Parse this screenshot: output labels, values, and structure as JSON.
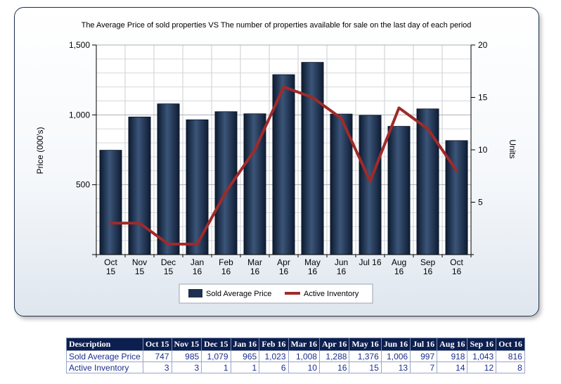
{
  "chart_data": {
    "type": "bar",
    "title": "The Average Price of sold properties VS The number of properties available for sale on the last day of each period",
    "ylabel": "Price (000's)",
    "y2label": "Units",
    "ylim": [
      0,
      1500
    ],
    "y2lim": [
      0,
      20
    ],
    "yticks": [
      500,
      1000,
      1500
    ],
    "yticklabels": [
      "500",
      "1,000",
      "1,500"
    ],
    "y2ticks": [
      5,
      10,
      15,
      20
    ],
    "y2ticklabels": [
      "5",
      "10",
      "15",
      "20"
    ],
    "categories": [
      [
        "Oct",
        "15"
      ],
      [
        "Nov",
        "15"
      ],
      [
        "Dec",
        "15"
      ],
      [
        "Jan",
        "16"
      ],
      [
        "Feb",
        "16"
      ],
      [
        "Mar",
        "16"
      ],
      [
        "Apr",
        "16"
      ],
      [
        "May",
        "16"
      ],
      [
        "Jun",
        "16"
      ],
      [
        "Jul 16"
      ],
      [
        "Aug",
        "16"
      ],
      [
        "Sep",
        "16"
      ],
      [
        "Oct",
        "16"
      ]
    ],
    "grid": true,
    "legend_position": "bottom",
    "series": [
      {
        "name": "Sold Average Price",
        "type": "bar",
        "axis": "left",
        "color": "#1e3050",
        "values": [
          747,
          985,
          1079,
          965,
          1023,
          1008,
          1288,
          1376,
          1006,
          997,
          918,
          1043,
          816
        ]
      },
      {
        "name": "Active Inventory",
        "type": "line",
        "axis": "right",
        "color": "#a02a2a",
        "values": [
          3,
          3,
          1,
          1,
          6,
          10,
          16,
          15,
          13,
          7,
          14,
          12,
          8
        ]
      }
    ]
  },
  "table": {
    "header": [
      "Description",
      "Oct 15",
      "Nov 15",
      "Dec 15",
      "Jan 16",
      "Feb 16",
      "Mar 16",
      "Apr 16",
      "May 16",
      "Jun 16",
      "Jul 16",
      "Aug 16",
      "Sep 16",
      "Oct 16"
    ],
    "rows": [
      [
        "Sold Average Price",
        "747",
        "985",
        "1,079",
        "965",
        "1,023",
        "1,008",
        "1,288",
        "1,376",
        "1,006",
        "997",
        "918",
        "1,043",
        "816"
      ],
      [
        "Active Inventory",
        "3",
        "3",
        "1",
        "1",
        "6",
        "10",
        "16",
        "15",
        "13",
        "7",
        "14",
        "12",
        "8"
      ]
    ]
  }
}
